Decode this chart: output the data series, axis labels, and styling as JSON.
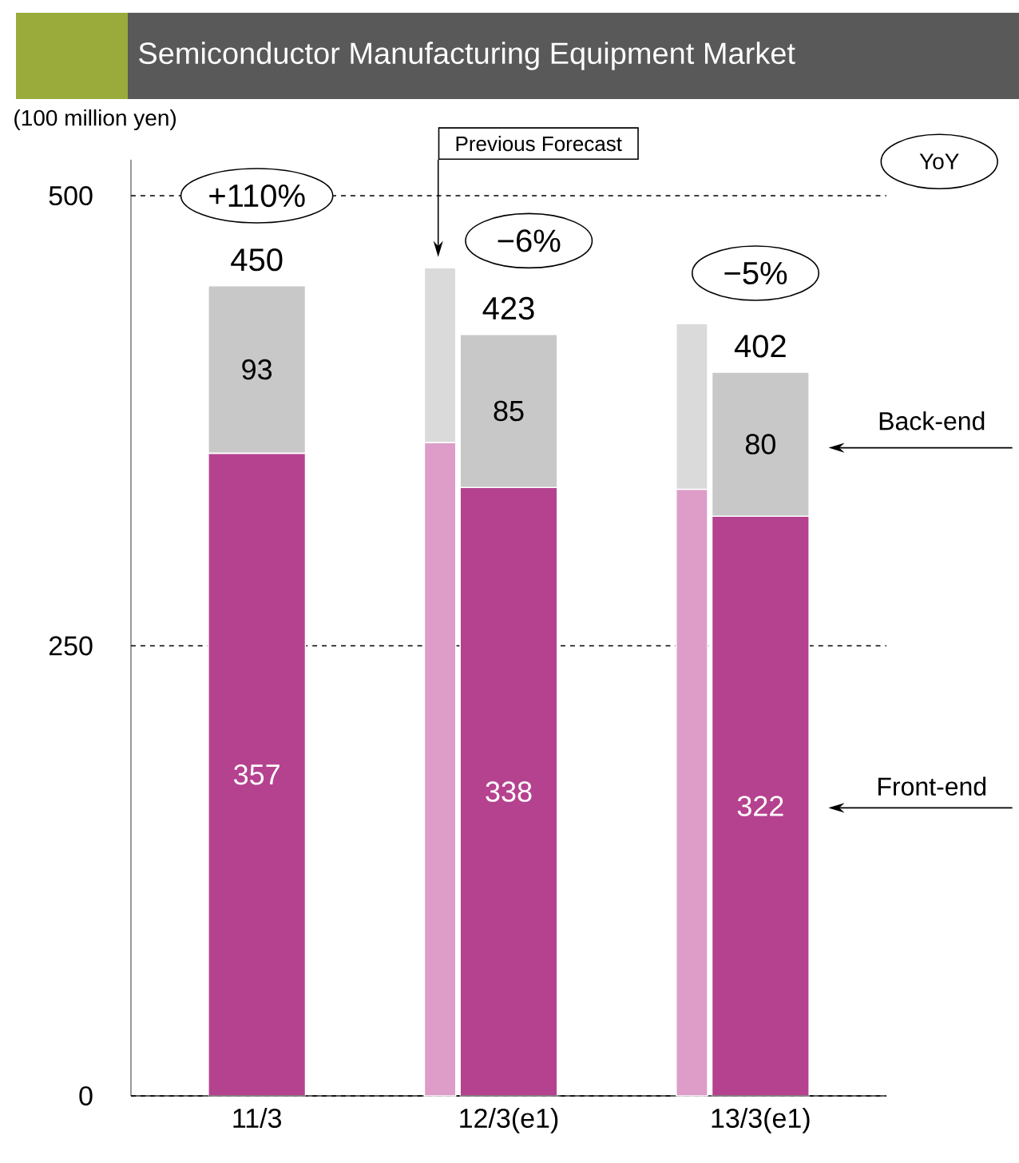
{
  "chart_data": [
    {
      "type": "bar",
      "title": "Semiconductor Manufacturing Equipment Market",
      "ylabel": "(100 million yen)",
      "categories": [
        "11/3",
        "12/3(e1)",
        "13/3(e1)"
      ],
      "stacked": true,
      "series": [
        {
          "name": "Front-end",
          "color": "#b5428f",
          "values": [
            357,
            338,
            322
          ],
          "value_labels": [
            "357",
            "338",
            "322"
          ]
        },
        {
          "name": "Back-end",
          "color": "#c8c8c8",
          "values": [
            93,
            85,
            80
          ],
          "value_labels": [
            "93",
            "85",
            "80"
          ]
        }
      ],
      "totals": [
        "450",
        "423",
        "402"
      ],
      "ylim": [
        0,
        520
      ],
      "yticks": [
        0,
        250,
        500
      ],
      "grid": "y",
      "annotations": [
        "+110%",
        "−6%",
        "−5%",
        "YoY"
      ]
    },
    {
      "type": "bar",
      "categories": [
        null,
        null,
        null
      ],
      "stacked": true,
      "series": [
        {
          "color": "#dd9dc8",
          "values": [
            null,
            363,
            337
          ]
        },
        {
          "color": "#dadada",
          "values": [
            null,
            97,
            92
          ]
        }
      ],
      "ylim": [
        0,
        520
      ],
      "annotations": [
        "Previous Forecast"
      ]
    }
  ]
}
